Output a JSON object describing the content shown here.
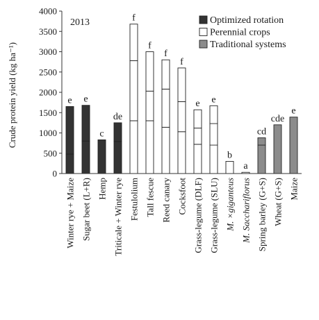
{
  "chart_data": {
    "type": "bar",
    "stacked": true,
    "annotation": "2013",
    "ylabel": "Crude protein yield (kg ha⁻¹)",
    "ylim": [
      0,
      4000
    ],
    "yticks": [
      0,
      500,
      1000,
      1500,
      2000,
      2500,
      3000,
      3500,
      4000
    ],
    "legend": {
      "placement": "top-right",
      "entries": [
        {
          "label": "Optimized rotation",
          "color": "#333333"
        },
        {
          "label": "Perennial crops",
          "color": "#ffffff"
        },
        {
          "label": "Traditional systems",
          "color": "#8c8c8c"
        }
      ]
    },
    "bars": [
      {
        "category": "Winter rye + Maize",
        "group": "Optimized rotation",
        "segments": [
          480,
          1170
        ],
        "total": 1650,
        "letter": "e",
        "italic": false
      },
      {
        "category": "Sugar beet (L+R)",
        "group": "Optimized rotation",
        "segments": [
          800,
          880
        ],
        "total": 1680,
        "letter": "e",
        "italic": false
      },
      {
        "category": "Hemp",
        "group": "Optimized rotation",
        "segments": [
          830
        ],
        "total": 830,
        "letter": "c",
        "italic": false
      },
      {
        "category": "Triticale + Winter rye",
        "group": "Optimized rotation",
        "segments": [
          790,
          460
        ],
        "total": 1250,
        "letter": "de",
        "italic": false
      },
      {
        "category": "Festulolium",
        "group": "Perennial crops",
        "segments": [
          1300,
          1480,
          900
        ],
        "total": 3680,
        "letter": "f",
        "italic": false
      },
      {
        "category": "Tall fescue",
        "group": "Perennial crops",
        "segments": [
          1300,
          730,
          970
        ],
        "total": 3000,
        "letter": "f",
        "italic": false
      },
      {
        "category": "Reed canary",
        "group": "Perennial crops",
        "segments": [
          1140,
          940,
          720
        ],
        "total": 2800,
        "letter": "f",
        "italic": false
      },
      {
        "category": "Cocksfoot",
        "group": "Perennial crops",
        "segments": [
          1030,
          740,
          830
        ],
        "total": 2600,
        "letter": "f",
        "italic": false
      },
      {
        "category": "Grass-legume (DLF)",
        "group": "Perennial crops",
        "segments": [
          720,
          400,
          450
        ],
        "total": 1570,
        "letter": "e",
        "italic": false
      },
      {
        "category": "Grass-legume (SLU)",
        "group": "Perennial crops",
        "segments": [
          700,
          530,
          440
        ],
        "total": 1670,
        "letter": "e",
        "italic": false
      },
      {
        "category": "M. ×giganteus",
        "group": "Perennial crops",
        "segments": [
          300
        ],
        "total": 300,
        "letter": "b",
        "italic": true
      },
      {
        "category": "M. Sacchariflorus",
        "group": "Perennial crops",
        "segments": [
          30
        ],
        "total": 30,
        "letter": "a",
        "italic": true
      },
      {
        "category": "Spring barley (G+S)",
        "group": "Traditional systems",
        "segments": [
          700,
          180
        ],
        "total": 880,
        "letter": "cd",
        "italic": false
      },
      {
        "category": "Wheat (G+S)",
        "group": "Traditional systems",
        "segments": [
          1200
        ],
        "total": 1200,
        "letter": "cde",
        "italic": false
      },
      {
        "category": "Maize",
        "group": "Traditional systems",
        "segments": [
          1390
        ],
        "total": 1390,
        "letter": "e",
        "italic": false
      }
    ]
  }
}
